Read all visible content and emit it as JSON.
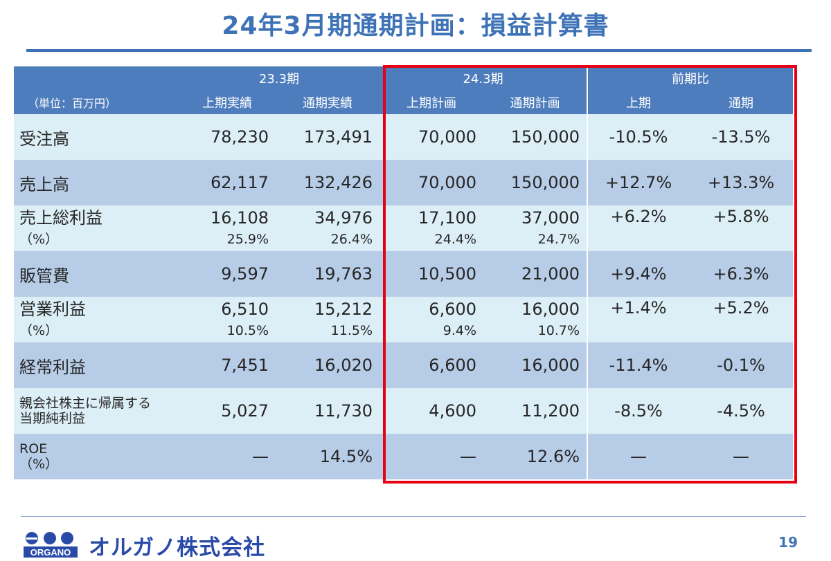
{
  "title": "24年3月期通期計画：損益計算書",
  "header": {
    "group_fy23": "23.3期",
    "group_fy24": "24.3期",
    "group_yoy": "前期比",
    "unit": "（単位：百万円）",
    "col_fy23_h1": "上期実績",
    "col_fy23_full": "通期実績",
    "col_fy24_h1": "上期計画",
    "col_fy24_full": "通期計画",
    "col_yoy_h1": "上期",
    "col_yoy_full": "通期"
  },
  "rows": [
    {
      "label": "受注高",
      "fy23_h1": "78,230",
      "fy23_full": "173,491",
      "fy24_h1": "70,000",
      "fy24_full": "150,000",
      "yoy_h1": "-10.5%",
      "yoy_full": "-13.5%"
    },
    {
      "label": "売上高",
      "fy23_h1": "62,117",
      "fy23_full": "132,426",
      "fy24_h1": "70,000",
      "fy24_full": "150,000",
      "yoy_h1": "+12.7%",
      "yoy_full": "+13.3%"
    },
    {
      "label": "売上総利益",
      "sublabel": "（%）",
      "fy23_h1": "16,108",
      "fy23_h1_sub": "25.9%",
      "fy23_full": "34,976",
      "fy23_full_sub": "26.4%",
      "fy24_h1": "17,100",
      "fy24_h1_sub": "24.4%",
      "fy24_full": "37,000",
      "fy24_full_sub": "24.7%",
      "yoy_h1": "+6.2%",
      "yoy_full": "+5.8%"
    },
    {
      "label": "販管費",
      "fy23_h1": "9,597",
      "fy23_full": "19,763",
      "fy24_h1": "10,500",
      "fy24_full": "21,000",
      "yoy_h1": "+9.4%",
      "yoy_full": "+6.3%"
    },
    {
      "label": "営業利益",
      "sublabel": "（%）",
      "fy23_h1": "6,510",
      "fy23_h1_sub": "10.5%",
      "fy23_full": "15,212",
      "fy23_full_sub": "11.5%",
      "fy24_h1": "6,600",
      "fy24_h1_sub": "9.4%",
      "fy24_full": "16,000",
      "fy24_full_sub": "10.7%",
      "yoy_h1": "+1.4%",
      "yoy_full": "+5.2%"
    },
    {
      "label": "経常利益",
      "fy23_h1": "7,451",
      "fy23_full": "16,020",
      "fy24_h1": "6,600",
      "fy24_full": "16,000",
      "yoy_h1": "-11.4%",
      "yoy_full": "-0.1%"
    },
    {
      "label": "親会社株主に帰属する",
      "label2": "当期純利益",
      "fy23_h1": "5,027",
      "fy23_full": "11,730",
      "fy24_h1": "4,600",
      "fy24_full": "11,200",
      "yoy_h1": "-8.5%",
      "yoy_full": "-4.5%"
    },
    {
      "label": "ROE",
      "label2": "（%）",
      "fy23_h1": "—",
      "fy23_full": "14.5%",
      "fy24_h1": "—",
      "fy24_full": "12.6%",
      "yoy_h1": "—",
      "yoy_full": "—"
    }
  ],
  "footer": {
    "logo_text": "ORGANO",
    "company": "オルガノ株式会社",
    "page_number": "19"
  },
  "colors": {
    "title": "#3e72b6",
    "header_bg": "#4e7dbd",
    "row_light": "#dceef6",
    "row_dark": "#b7cce6",
    "highlight_border": "#e60012"
  }
}
